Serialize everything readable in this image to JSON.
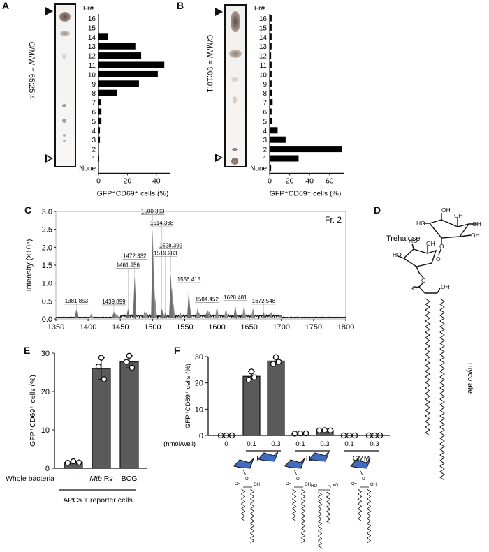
{
  "panels": {
    "A": {
      "letter": "A",
      "solvent_label": "C/M/W = 65:25:4"
    },
    "B": {
      "letter": "B",
      "solvent_label": "C/M/W = 90:10:1"
    },
    "C": {
      "letter": "C",
      "annotation": "Fr. 2"
    },
    "D": {
      "letter": "D",
      "trehalose_label": "Trehalose",
      "mycolate_label": "mycolate"
    },
    "E": {
      "letter": "E",
      "row_label": "Whole bacteria",
      "group_label": "APCs + reporter cells"
    },
    "F": {
      "letter": "F",
      "dose_label": "(nmol/well)",
      "group_labels": [
        "TMM",
        "TDM",
        "GMM"
      ]
    }
  },
  "chart_data": [
    {
      "id": "A",
      "type": "bar",
      "orientation": "horizontal",
      "title": "",
      "category_header": "Fr#",
      "categories": [
        "16",
        "15",
        "14",
        "13",
        "12",
        "11",
        "10",
        "9",
        "8",
        "7",
        "6",
        "5",
        "4",
        "3",
        "2",
        "1",
        "None"
      ],
      "values": [
        0,
        0,
        6.5,
        25.5,
        29.5,
        45.5,
        41,
        28,
        13,
        1.5,
        2,
        2,
        1,
        1,
        0,
        0.5,
        0
      ],
      "xlabel": "GFP⁺CD69⁺ cells (%)",
      "ylabel": "",
      "xlim": [
        0,
        50
      ],
      "xticks": [
        0,
        20,
        40
      ],
      "grid": false
    },
    {
      "id": "B",
      "type": "bar",
      "orientation": "horizontal",
      "title": "",
      "category_header": "Fr#",
      "categories": [
        "16",
        "15",
        "14",
        "13",
        "12",
        "11",
        "10",
        "9",
        "8",
        "7",
        "6",
        "5",
        "4",
        "3",
        "2",
        "1",
        "None"
      ],
      "values": [
        2,
        2,
        2,
        2,
        1.5,
        2,
        2,
        2,
        2.5,
        3,
        2,
        2.5,
        8,
        16,
        72,
        29,
        1.5
      ],
      "xlabel": "GFP⁺CD69⁺ cells (%)",
      "ylabel": "",
      "xlim": [
        0,
        75
      ],
      "xticks": [
        0,
        20,
        40,
        60
      ],
      "grid": false
    },
    {
      "id": "C",
      "type": "line",
      "title": "Fr. 2",
      "xlabel": "",
      "ylabel": "Intensity (×10⁴)",
      "xlim": [
        1350,
        1800
      ],
      "ylim": [
        0,
        3.0
      ],
      "xticks": [
        1350,
        1400,
        1450,
        1500,
        1550,
        1600,
        1650,
        1700,
        1750,
        1800
      ],
      "yticks": [
        "0.0",
        "0.5",
        "1.0",
        "1.5",
        "2.0",
        "2.5",
        "3.0"
      ],
      "peaks": [
        {
          "mz": 1381.853,
          "intensity": 0.28
        },
        {
          "mz": 1439.899,
          "intensity": 0.22
        },
        {
          "mz": 1461.956,
          "intensity": 0.3
        },
        {
          "mz": 1472.332,
          "intensity": 1.25
        },
        {
          "mz": 1500.363,
          "intensity": 2.55
        },
        {
          "mz": 1514.368,
          "intensity": 0.3
        },
        {
          "mz": 1519.983,
          "intensity": 0.2
        },
        {
          "mz": 1528.392,
          "intensity": 1.3
        },
        {
          "mz": 1556.415,
          "intensity": 0.85
        },
        {
          "mz": 1584.452,
          "intensity": 0.22
        },
        {
          "mz": 1628.481,
          "intensity": 0.4
        },
        {
          "mz": 1672.548,
          "intensity": 0.2
        }
      ],
      "grid": false
    },
    {
      "id": "E",
      "type": "bar",
      "title": "",
      "categories": [
        "–",
        "Mtb Rv",
        "BCG"
      ],
      "values": [
        1.5,
        26,
        27.7
      ],
      "points": [
        [
          1.4,
          1.8,
          1.5
        ],
        [
          28.8,
          26.5,
          23.2
        ],
        [
          29.3,
          27.7,
          26.2
        ]
      ],
      "xlabel": "APCs + reporter cells",
      "ylabel": "GFP⁺CD69⁺ cells (%)",
      "ylim": [
        0,
        30
      ],
      "yticks": [
        0,
        10,
        20,
        30
      ],
      "grid": false
    },
    {
      "id": "F",
      "type": "bar",
      "title": "",
      "categories": [
        "0",
        "0.1",
        "0.3",
        "0.1",
        "0.3",
        "0.1",
        "0.3"
      ],
      "groups": [
        "",
        "TMM",
        "TMM",
        "TDM",
        "TDM",
        "GMM",
        "GMM"
      ],
      "values": [
        0,
        22.5,
        28.3,
        0.8,
        1.9,
        0,
        0
      ],
      "points": [
        [
          0,
          0,
          0
        ],
        [
          24.3,
          21.2,
          22.1
        ],
        [
          29.8,
          27.2,
          28.0
        ],
        [
          0.7,
          0.8,
          0.8
        ],
        [
          1.9,
          2.0,
          1.9
        ],
        [
          0,
          0,
          0
        ],
        [
          0,
          0,
          0
        ]
      ],
      "xlabel": "(nmol/well)",
      "ylabel": "GFP⁺CD69⁺ cells (%)",
      "ylim": [
        0,
        30
      ],
      "yticks": [
        0,
        10,
        20,
        30
      ],
      "grid": false
    }
  ],
  "colors": {
    "bar_dark": "#5a5a5a",
    "bar_black": "#000000",
    "sugar_blue": "#3f6cbf",
    "spectrum_grey": "#8a8a8a"
  }
}
